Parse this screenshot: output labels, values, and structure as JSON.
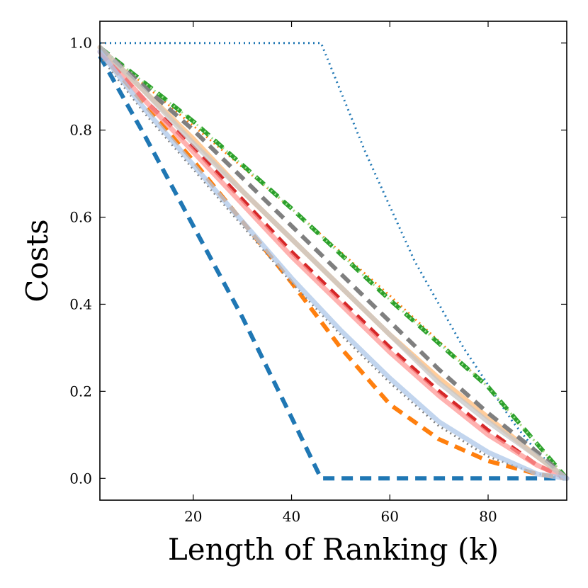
{
  "chart_data": {
    "type": "line",
    "title": "",
    "xlabel": "Length of Ranking (k)",
    "ylabel": "Costs",
    "xlim": [
      1,
      96
    ],
    "ylim": [
      -0.05,
      1.05
    ],
    "xticks": [
      20,
      40,
      60,
      80
    ],
    "xtick_labels": [
      "20",
      "40",
      "60",
      "80"
    ],
    "yticks": [
      0.0,
      0.2,
      0.4,
      0.6,
      0.8,
      1.0
    ],
    "ytick_labels": [
      "0.0",
      "0.2",
      "0.4",
      "0.6",
      "0.8",
      "1.0"
    ],
    "grid": false,
    "legend": "none",
    "series": [
      {
        "color": "#1f77b4",
        "style": "dotted",
        "x": [
          1,
          46,
          55,
          65,
          75,
          85,
          90,
          96
        ],
        "y": [
          1.0,
          1.0,
          0.75,
          0.5,
          0.3,
          0.13,
          0.06,
          0.0
        ]
      },
      {
        "color": "#1f77b4",
        "style": "dashed",
        "x": [
          1,
          10,
          20,
          30,
          40,
          46,
          96
        ],
        "y": [
          0.97,
          0.79,
          0.58,
          0.37,
          0.14,
          0.0,
          0.0
        ]
      },
      {
        "color": "#ff7f0e",
        "style": "dotted",
        "x": [
          1,
          20,
          40,
          60,
          80,
          96
        ],
        "y": [
          0.99,
          0.81,
          0.62,
          0.42,
          0.21,
          0.0
        ]
      },
      {
        "color": "#ff7f0e",
        "style": "dashed",
        "x": [
          1,
          10,
          20,
          30,
          40,
          50,
          60,
          70,
          80,
          90,
          96
        ],
        "y": [
          0.98,
          0.86,
          0.73,
          0.59,
          0.45,
          0.3,
          0.17,
          0.09,
          0.04,
          0.01,
          0.0
        ]
      },
      {
        "color": "#ffbb78",
        "style": "solid",
        "x": [
          1,
          10,
          20,
          30,
          40,
          50,
          60,
          70,
          80,
          90,
          96
        ],
        "y": [
          0.99,
          0.89,
          0.78,
          0.66,
          0.55,
          0.44,
          0.33,
          0.23,
          0.14,
          0.05,
          0.0
        ]
      },
      {
        "color": "#2ca02c",
        "style": "dashed",
        "x": [
          1,
          20,
          40,
          60,
          80,
          96
        ],
        "y": [
          0.99,
          0.82,
          0.62,
          0.41,
          0.21,
          0.0
        ]
      },
      {
        "color": "#98df8a",
        "style": "dotted",
        "x": [
          1,
          20,
          40,
          60,
          80,
          96
        ],
        "y": [
          0.99,
          0.82,
          0.62,
          0.41,
          0.21,
          0.0
        ]
      },
      {
        "color": "#d62728",
        "style": "dashed",
        "x": [
          1,
          10,
          20,
          30,
          40,
          50,
          60,
          70,
          80,
          90,
          96
        ],
        "y": [
          0.98,
          0.87,
          0.76,
          0.64,
          0.52,
          0.41,
          0.3,
          0.2,
          0.11,
          0.03,
          0.0
        ]
      },
      {
        "color": "#ff9896",
        "style": "solid",
        "x": [
          1,
          10,
          20,
          30,
          40,
          50,
          60,
          70,
          80,
          90,
          96
        ],
        "y": [
          0.98,
          0.87,
          0.75,
          0.63,
          0.51,
          0.4,
          0.29,
          0.19,
          0.1,
          0.03,
          0.0
        ]
      },
      {
        "color": "#7f7f7f",
        "style": "dashed",
        "x": [
          1,
          10,
          20,
          30,
          40,
          50,
          60,
          70,
          80,
          90,
          96
        ],
        "y": [
          0.99,
          0.9,
          0.8,
          0.69,
          0.58,
          0.47,
          0.36,
          0.25,
          0.15,
          0.06,
          0.0
        ]
      },
      {
        "color": "#7f7f7f",
        "style": "dotted",
        "x": [
          1,
          10,
          20,
          30,
          40,
          50,
          60,
          70,
          80,
          90,
          96
        ],
        "y": [
          0.97,
          0.84,
          0.71,
          0.58,
          0.45,
          0.33,
          0.22,
          0.12,
          0.05,
          0.01,
          0.0
        ]
      },
      {
        "color": "#c7c7c7",
        "style": "solid",
        "x": [
          1,
          10,
          20,
          30,
          40,
          50,
          60,
          70,
          80,
          90,
          96
        ],
        "y": [
          0.99,
          0.89,
          0.77,
          0.66,
          0.55,
          0.44,
          0.33,
          0.22,
          0.13,
          0.05,
          0.0
        ]
      },
      {
        "color": "#aec7e8",
        "style": "solid",
        "x": [
          1,
          10,
          20,
          30,
          40,
          50,
          60,
          70,
          80,
          90,
          96
        ],
        "y": [
          0.98,
          0.85,
          0.72,
          0.59,
          0.46,
          0.34,
          0.23,
          0.13,
          0.06,
          0.01,
          0.0
        ]
      }
    ]
  }
}
